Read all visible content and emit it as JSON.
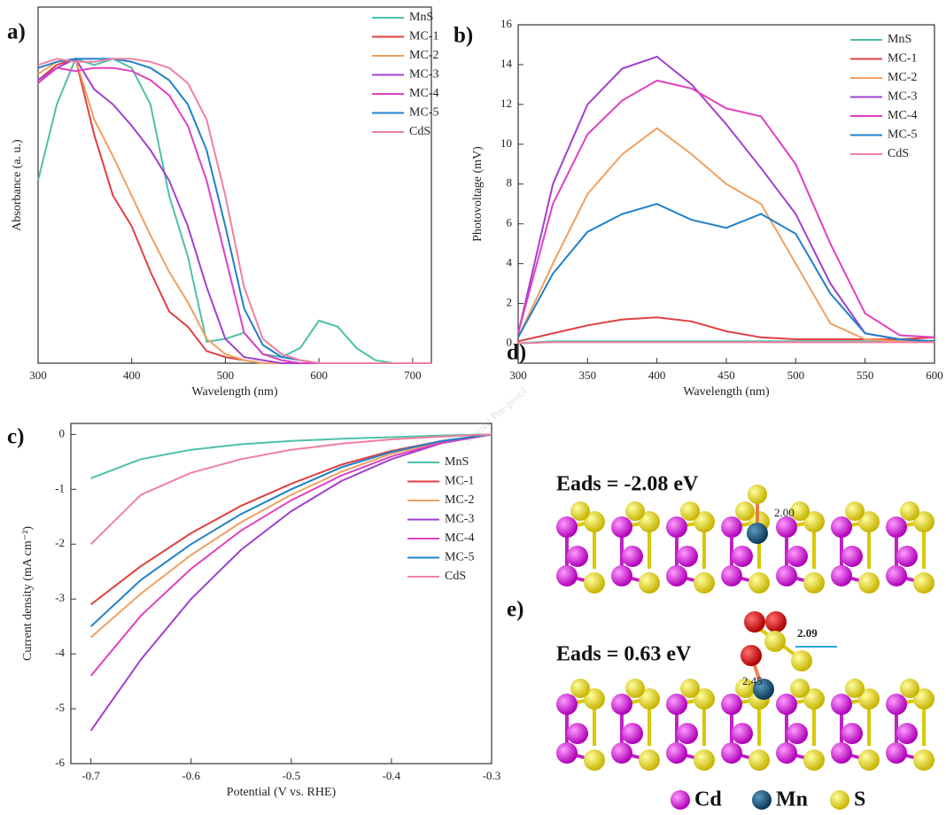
{
  "chart_data": [
    {
      "type": "line",
      "panel_label": "a)",
      "x_label": "Wavelength (nm)",
      "y_label": "Absorbance (a. u.)",
      "x": [
        300,
        320,
        340,
        360,
        380,
        400,
        420,
        440,
        460,
        480,
        500,
        520,
        540,
        560,
        580,
        600,
        620,
        640,
        660,
        680,
        700,
        720
      ],
      "xlim": [
        300,
        720
      ],
      "xticks": [
        300,
        400,
        500,
        600,
        700
      ],
      "ylim": [
        0,
        1.17
      ],
      "series": [
        {
          "name": "MnS",
          "color": "#4dbfa8",
          "values": [
            0.6,
            0.85,
            1.0,
            0.98,
            1.0,
            0.97,
            0.85,
            0.55,
            0.35,
            0.07,
            0.08,
            0.1,
            0.03,
            0.02,
            0.05,
            0.14,
            0.12,
            0.05,
            0.01,
            0,
            0,
            0
          ]
        },
        {
          "name": "MC-1",
          "color": "#e0403f",
          "values": [
            0.93,
            0.98,
            1.0,
            0.75,
            0.55,
            0.45,
            0.3,
            0.17,
            0.12,
            0.04,
            0.02,
            0.01,
            0,
            0,
            0,
            0,
            0,
            0,
            0,
            0,
            0,
            0
          ]
        },
        {
          "name": "MC-2",
          "color": "#f0a060",
          "values": [
            0.95,
            0.99,
            1.0,
            0.8,
            0.68,
            0.55,
            0.42,
            0.3,
            0.2,
            0.08,
            0.03,
            0.01,
            0,
            0,
            0,
            0,
            0,
            0,
            0,
            0,
            0,
            0
          ]
        },
        {
          "name": "MC-3",
          "color": "#a040d0",
          "values": [
            0.93,
            0.97,
            1.0,
            0.9,
            0.85,
            0.78,
            0.7,
            0.6,
            0.45,
            0.25,
            0.08,
            0.02,
            0.01,
            0,
            0,
            0,
            0,
            0,
            0,
            0,
            0,
            0
          ]
        },
        {
          "name": "MC-4",
          "color": "#e040c0",
          "values": [
            0.92,
            0.97,
            0.96,
            0.97,
            0.97,
            0.96,
            0.93,
            0.88,
            0.78,
            0.6,
            0.35,
            0.1,
            0.03,
            0.01,
            0,
            0,
            0,
            0,
            0,
            0,
            0,
            0
          ]
        },
        {
          "name": "MC-5",
          "color": "#2080c8",
          "values": [
            0.97,
            0.99,
            1.0,
            1.0,
            1.0,
            0.99,
            0.97,
            0.93,
            0.85,
            0.7,
            0.45,
            0.18,
            0.06,
            0.02,
            0.01,
            0,
            0,
            0,
            0,
            0,
            0,
            0
          ]
        },
        {
          "name": "CdS",
          "color": "#f080a0",
          "values": [
            0.98,
            1.0,
            0.99,
            0.99,
            1.0,
            1.0,
            0.99,
            0.97,
            0.92,
            0.8,
            0.55,
            0.25,
            0.08,
            0.03,
            0.01,
            0,
            0,
            0,
            0,
            0,
            0,
            0
          ]
        }
      ]
    },
    {
      "type": "line",
      "panel_label": "b)",
      "x_label": "Wavelength (nm)",
      "y_label": "Photovoltage (mV)",
      "x": [
        300,
        325,
        350,
        375,
        400,
        425,
        450,
        475,
        500,
        525,
        550,
        575,
        600
      ],
      "xlim": [
        300,
        600
      ],
      "xticks": [
        300,
        350,
        400,
        450,
        500,
        550,
        600
      ],
      "ylim": [
        -1,
        16
      ],
      "yticks": [
        0,
        2,
        4,
        6,
        8,
        10,
        12,
        14,
        16
      ],
      "series": [
        {
          "name": "MnS",
          "color": "#4dbfa8",
          "values": [
            0,
            0.1,
            0.1,
            0.1,
            0.1,
            0.1,
            0.1,
            0.1,
            0.1,
            0.1,
            0.1,
            0.1,
            0.1
          ]
        },
        {
          "name": "MC-1",
          "color": "#e0403f",
          "values": [
            0.1,
            0.5,
            0.9,
            1.2,
            1.3,
            1.1,
            0.6,
            0.3,
            0.2,
            0.2,
            0.2,
            0.2,
            0.3
          ]
        },
        {
          "name": "MC-2",
          "color": "#f0a060",
          "values": [
            0.3,
            4,
            7.5,
            9.5,
            10.8,
            9.5,
            8,
            7,
            4,
            1,
            0.2,
            0.1,
            0.1
          ]
        },
        {
          "name": "MC-3",
          "color": "#a040d0",
          "values": [
            0.5,
            8,
            12,
            13.8,
            14.4,
            13,
            11,
            8.8,
            6.5,
            3,
            0.5,
            0.2,
            0.1
          ]
        },
        {
          "name": "MC-4",
          "color": "#e040c0",
          "values": [
            0.5,
            7,
            10.5,
            12.2,
            13.2,
            12.8,
            11.8,
            11.4,
            9,
            5,
            1.5,
            0.4,
            0.3
          ]
        },
        {
          "name": "MC-5",
          "color": "#2080c8",
          "values": [
            0.3,
            3.5,
            5.6,
            6.5,
            7,
            6.2,
            5.8,
            6.5,
            5.5,
            2.5,
            0.5,
            0.2,
            0.1
          ]
        },
        {
          "name": "CdS",
          "color": "#f080a0",
          "values": [
            0,
            0.05,
            0.05,
            0.05,
            0.05,
            0.05,
            0.05,
            0.05,
            0.05,
            0.05,
            0.05,
            0.05,
            0.05
          ]
        }
      ]
    },
    {
      "type": "line",
      "panel_label": "c)",
      "x_label": "Potential (V vs. RHE)",
      "y_label": "Current density (mA cm⁻²)",
      "x": [
        -0.7,
        -0.65,
        -0.6,
        -0.55,
        -0.5,
        -0.45,
        -0.4,
        -0.35,
        -0.3
      ],
      "xlim": [
        -0.72,
        -0.3
      ],
      "xticks": [
        -0.7,
        -0.6,
        -0.5,
        -0.4,
        -0.3
      ],
      "ylim": [
        -6,
        0.2
      ],
      "yticks": [
        0,
        -1,
        -2,
        -3,
        -4,
        -5,
        -6
      ],
      "series": [
        {
          "name": "MnS",
          "color": "#4dbfa8",
          "values": [
            -0.8,
            -0.45,
            -0.28,
            -0.18,
            -0.12,
            -0.08,
            -0.05,
            -0.02,
            0
          ]
        },
        {
          "name": "MC-1",
          "color": "#e0403f",
          "values": [
            -3.1,
            -2.4,
            -1.8,
            -1.3,
            -0.9,
            -0.55,
            -0.3,
            -0.12,
            0
          ]
        },
        {
          "name": "MC-2",
          "color": "#f0a060",
          "values": [
            -3.7,
            -2.9,
            -2.2,
            -1.6,
            -1.1,
            -0.68,
            -0.35,
            -0.13,
            0
          ]
        },
        {
          "name": "MC-3",
          "color": "#a040d0",
          "values": [
            -5.4,
            -4.1,
            -3.0,
            -2.1,
            -1.4,
            -0.85,
            -0.45,
            -0.16,
            0
          ]
        },
        {
          "name": "MC-4",
          "color": "#e040c0",
          "values": [
            -4.4,
            -3.3,
            -2.45,
            -1.75,
            -1.2,
            -0.75,
            -0.4,
            -0.15,
            0
          ]
        },
        {
          "name": "MC-5",
          "color": "#2080c8",
          "values": [
            -3.5,
            -2.65,
            -2.0,
            -1.45,
            -1.0,
            -0.6,
            -0.32,
            -0.12,
            0
          ]
        },
        {
          "name": "CdS",
          "color": "#f080a0",
          "values": [
            -2.0,
            -1.1,
            -0.7,
            -0.45,
            -0.28,
            -0.17,
            -0.09,
            -0.04,
            0
          ]
        }
      ]
    }
  ],
  "structures": [
    {
      "label": "d)",
      "energy": "Eads = -2.08 eV",
      "distances": [
        "2.00"
      ]
    },
    {
      "label": "e)",
      "energy": "Eads = 0.63 eV",
      "distances": [
        "2.09",
        "2.45"
      ]
    }
  ],
  "atom_legend": [
    "Cd",
    "Mn",
    "S"
  ],
  "watermark": "Journal Pre-proof"
}
